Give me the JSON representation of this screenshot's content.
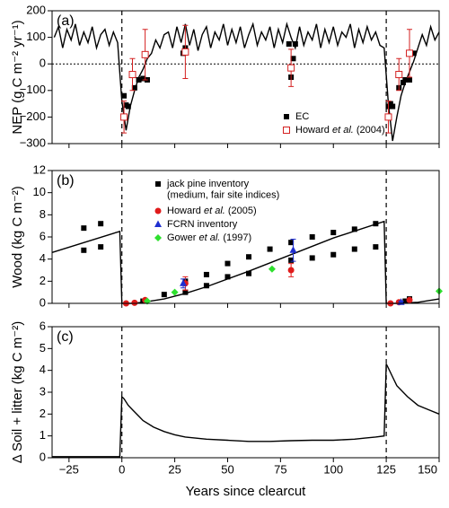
{
  "chart_data": [
    {
      "type": "line",
      "panel_label": "(a)",
      "ylabel": "NEP (g C m⁻² yr⁻¹)",
      "xlim": [
        -33,
        150
      ],
      "xticks": [
        -25,
        0,
        25,
        50,
        75,
        100,
        125,
        150
      ],
      "ylim": [
        -300,
        200
      ],
      "yticks": [
        {
          "value": -300,
          "label": "−300"
        },
        {
          "value": -200,
          "label": "−200"
        },
        {
          "value": -100,
          "label": "−100"
        },
        0,
        100,
        200
      ],
      "vlines": [
        0,
        125
      ],
      "hlines": [
        0
      ],
      "legend": "lower right",
      "series": [
        {
          "color": "#000000",
          "x": [
            -32,
            -30,
            -28,
            -26,
            -24,
            -22,
            -20,
            -18,
            -16,
            -14,
            -12,
            -10,
            -8,
            -6,
            -4,
            -2,
            0,
            2,
            4,
            6,
            8,
            10,
            12,
            14,
            16,
            18,
            20,
            22,
            24,
            26,
            28,
            30,
            32,
            34,
            36,
            38,
            40,
            42,
            44,
            46,
            48,
            50,
            52,
            54,
            56,
            58,
            60,
            62,
            64,
            66,
            68,
            70,
            72,
            74,
            76,
            78,
            80,
            82,
            84,
            86,
            88,
            90,
            92,
            94,
            96,
            98,
            100,
            102,
            104,
            106,
            108,
            110,
            112,
            114,
            116,
            118,
            120,
            122,
            124,
            126,
            128,
            130,
            132,
            134,
            136,
            138,
            140,
            142,
            144,
            146,
            148,
            150
          ],
          "values": [
            100,
            140,
            60,
            130,
            90,
            150,
            70,
            120,
            80,
            140,
            60,
            110,
            130,
            70,
            120,
            80,
            -140,
            -250,
            -160,
            -100,
            -50,
            -20,
            20,
            40,
            90,
            60,
            110,
            120,
            60,
            140,
            80,
            150,
            70,
            130,
            50,
            110,
            140,
            60,
            120,
            90,
            150,
            70,
            130,
            80,
            140,
            60,
            110,
            150,
            70,
            120,
            90,
            140,
            60,
            130,
            80,
            150,
            100,
            60,
            140,
            70,
            120,
            90,
            150,
            60,
            130,
            80,
            140,
            70,
            120,
            100,
            150,
            60,
            130,
            80,
            140,
            90,
            120,
            70,
            60,
            -150,
            -290,
            -200,
            -120,
            -70,
            -30,
            10,
            60,
            110,
            70,
            140,
            90,
            120
          ]
        },
        {
          "name": "EC",
          "color": "#000000",
          "marker": "square",
          "x": [
            1,
            2,
            3,
            6,
            8,
            10,
            12,
            29,
            30,
            79,
            80,
            81,
            82,
            126,
            127,
            128,
            131,
            133,
            134,
            136,
            138
          ],
          "values": [
            -120,
            -155,
            -160,
            -90,
            -60,
            -55,
            -60,
            40,
            60,
            75,
            -50,
            20,
            75,
            -160,
            -150,
            -160,
            -90,
            -70,
            -60,
            -60,
            40
          ]
        },
        {
          "name": "Howard et al. (2004)",
          "color": "#d42020",
          "marker": "open-square",
          "x": [
            1,
            5,
            11,
            30,
            80,
            126,
            131,
            136
          ],
          "values": [
            -200,
            -40,
            35,
            45,
            -15,
            -200,
            -40,
            40
          ],
          "errors": [
            60,
            60,
            95,
            100,
            70,
            60,
            60,
            90
          ]
        }
      ]
    },
    {
      "type": "line",
      "panel_label": "(b)",
      "ylabel": "Wood (kg C m⁻²)",
      "xlim": [
        -33,
        150
      ],
      "xticks": [
        -25,
        0,
        25,
        50,
        75,
        100,
        125,
        150
      ],
      "ylim": [
        0,
        12
      ],
      "yticks": [
        0,
        2,
        4,
        6,
        8,
        10,
        12
      ],
      "vlines": [
        0,
        125
      ],
      "legend": "upper center",
      "series": [
        {
          "color": "#000000",
          "x": [
            -33,
            -1,
            0,
            5,
            10,
            20,
            30,
            40,
            60,
            80,
            100,
            124,
            125,
            130,
            140,
            150
          ],
          "values": [
            4.6,
            6.5,
            0,
            0,
            0.1,
            0.4,
            0.9,
            1.5,
            2.9,
            4.4,
            5.9,
            7.4,
            0,
            0,
            0.1,
            0.4
          ]
        },
        {
          "name": "jack pine inventory\n(medium, fair site indices)",
          "color": "#000000",
          "marker": "square",
          "x": [
            -18,
            -18,
            -10,
            -10,
            10,
            20,
            30,
            30,
            40,
            40,
            50,
            50,
            60,
            60,
            70,
            80,
            80,
            90,
            90,
            100,
            100,
            110,
            110,
            120,
            120,
            134,
            136
          ],
          "values": [
            6.8,
            4.8,
            7.2,
            5.1,
            0.2,
            0.8,
            2.0,
            1.0,
            2.6,
            1.6,
            3.6,
            2.4,
            4.2,
            2.7,
            4.9,
            5.5,
            3.9,
            6.0,
            4.1,
            6.4,
            4.4,
            6.7,
            4.9,
            7.2,
            5.1,
            0.2,
            0.4
          ]
        },
        {
          "name": "Howard et al. (2005)",
          "color": "#e01b1b",
          "marker": "circle",
          "x": [
            2,
            6,
            11,
            30,
            80,
            127,
            131,
            136
          ],
          "values": [
            0,
            0.05,
            0.3,
            1.8,
            3.0,
            0,
            0.1,
            0.3
          ],
          "errors": [
            0.1,
            0.1,
            0.1,
            0.6,
            0.6,
            0.1,
            0.1,
            0.1
          ]
        },
        {
          "name": "FCRN inventory",
          "color": "#1f2fd0",
          "marker": "triangle",
          "x": [
            29,
            81,
            132
          ],
          "values": [
            1.8,
            4.8,
            0.1
          ],
          "errors": [
            0.4,
            1.0,
            0.1
          ]
        },
        {
          "name": "Gower et al. (1997)",
          "color": "#2ee02e",
          "marker": "diamond",
          "x": [
            12,
            25,
            71,
            150
          ],
          "values": [
            0.2,
            1.0,
            3.1,
            1.1
          ]
        }
      ]
    },
    {
      "type": "line",
      "panel_label": "(c)",
      "ylabel": "Δ Soil + litter (kg C m⁻²)",
      "xlabel": "Years since clearcut",
      "xlim": [
        -33,
        150
      ],
      "xticks": [
        {
          "value": -25,
          "label": "−25"
        },
        0,
        25,
        50,
        75,
        100,
        125,
        150
      ],
      "ylim": [
        0,
        6
      ],
      "yticks": [
        0,
        1,
        2,
        3,
        4,
        5,
        6
      ],
      "vlines": [
        0,
        125
      ],
      "series": [
        {
          "color": "#000000",
          "x": [
            -33,
            -1,
            0,
            1,
            3,
            5,
            8,
            10,
            15,
            20,
            25,
            30,
            40,
            50,
            60,
            70,
            80,
            90,
            100,
            110,
            115,
            120,
            124,
            125,
            126,
            128,
            130,
            135,
            140,
            145,
            150
          ],
          "values": [
            0.05,
            0.05,
            2.8,
            2.7,
            2.4,
            2.2,
            1.9,
            1.7,
            1.4,
            1.2,
            1.05,
            0.95,
            0.85,
            0.8,
            0.75,
            0.75,
            0.78,
            0.8,
            0.8,
            0.85,
            0.9,
            0.95,
            1.0,
            4.3,
            4.1,
            3.7,
            3.3,
            2.8,
            2.4,
            2.2,
            2.0
          ]
        }
      ]
    }
  ]
}
